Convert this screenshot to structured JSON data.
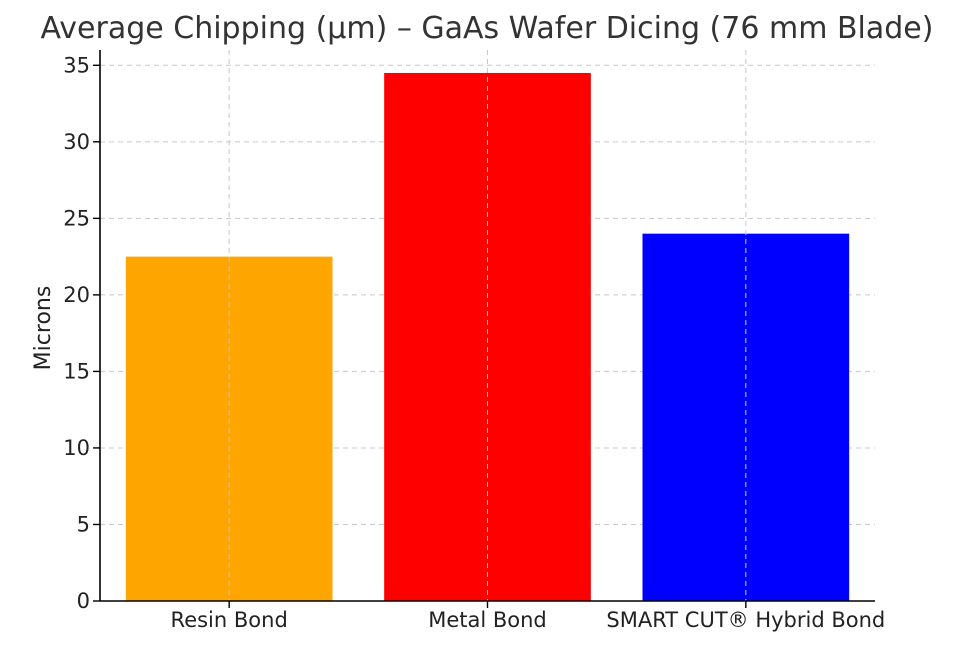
{
  "chart_data": {
    "type": "bar",
    "title": "Average Chipping (µm) – GaAs Wafer Dicing (76 mm Blade)",
    "xlabel": "",
    "ylabel": "Microns",
    "categories": [
      "Resin Bond",
      "Metal Bond",
      "SMART CUT® Hybrid Bond"
    ],
    "values": [
      22.5,
      34.5,
      24
    ],
    "colors": [
      "#FFA500",
      "#FF0000",
      "#0000FF"
    ],
    "ylim": [
      0,
      36
    ],
    "yticks": [
      0,
      5,
      10,
      15,
      20,
      25,
      30,
      35
    ],
    "grid": true
  }
}
